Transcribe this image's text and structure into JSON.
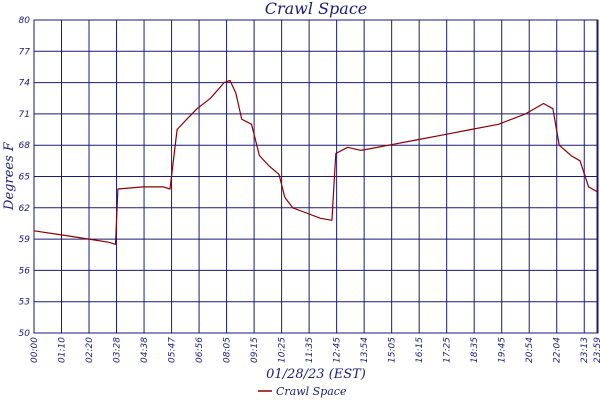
{
  "chart_data": {
    "type": "line",
    "title": "Crawl Space",
    "xlabel": "01/28/23 (EST)",
    "ylabel": "Degrees F",
    "ylim": [
      50,
      80
    ],
    "yticks": [
      50,
      53,
      56,
      59,
      62,
      65,
      68,
      71,
      74,
      77,
      80
    ],
    "xtick_labels": [
      "00:00",
      "01:10",
      "02:20",
      "03:28",
      "04:38",
      "05:47",
      "06:56",
      "08:05",
      "09:15",
      "10:25",
      "11:35",
      "12:45",
      "13:54",
      "15:05",
      "16:15",
      "17:25",
      "18:35",
      "19:45",
      "20:54",
      "22:04",
      "23:13",
      "23:59"
    ],
    "grid": true,
    "legend_position": "bottom-center",
    "colors": {
      "series": "#8b0000",
      "axes": "#1a1a78"
    },
    "series": [
      {
        "name": "Crawl Space",
        "x": [
          "00:00",
          "01:10",
          "02:20",
          "03:10",
          "03:28",
          "03:34",
          "04:38",
          "05:15",
          "05:30",
          "05:47",
          "06:05",
          "06:30",
          "06:56",
          "07:30",
          "08:05",
          "08:20",
          "08:35",
          "08:50",
          "09:15",
          "09:35",
          "10:00",
          "10:25",
          "10:40",
          "11:00",
          "11:35",
          "12:10",
          "12:40",
          "12:50",
          "13:20",
          "13:54",
          "15:05",
          "16:15",
          "17:25",
          "18:35",
          "19:45",
          "20:54",
          "21:40",
          "22:04",
          "22:20",
          "22:50",
          "23:13",
          "23:35",
          "23:59"
        ],
        "y": [
          59.8,
          59.4,
          59.0,
          58.7,
          58.5,
          63.8,
          64.0,
          64.0,
          64.0,
          63.8,
          69.5,
          70.5,
          71.5,
          72.5,
          74.0,
          74.2,
          73.0,
          70.5,
          70.0,
          67.0,
          66.0,
          65.2,
          63.0,
          62.0,
          61.5,
          61.0,
          60.8,
          67.2,
          67.8,
          67.5,
          68.0,
          68.5,
          69.0,
          69.5,
          70.0,
          71.0,
          72.0,
          71.5,
          68.0,
          67.0,
          66.5,
          64.0,
          63.5
        ]
      }
    ]
  }
}
